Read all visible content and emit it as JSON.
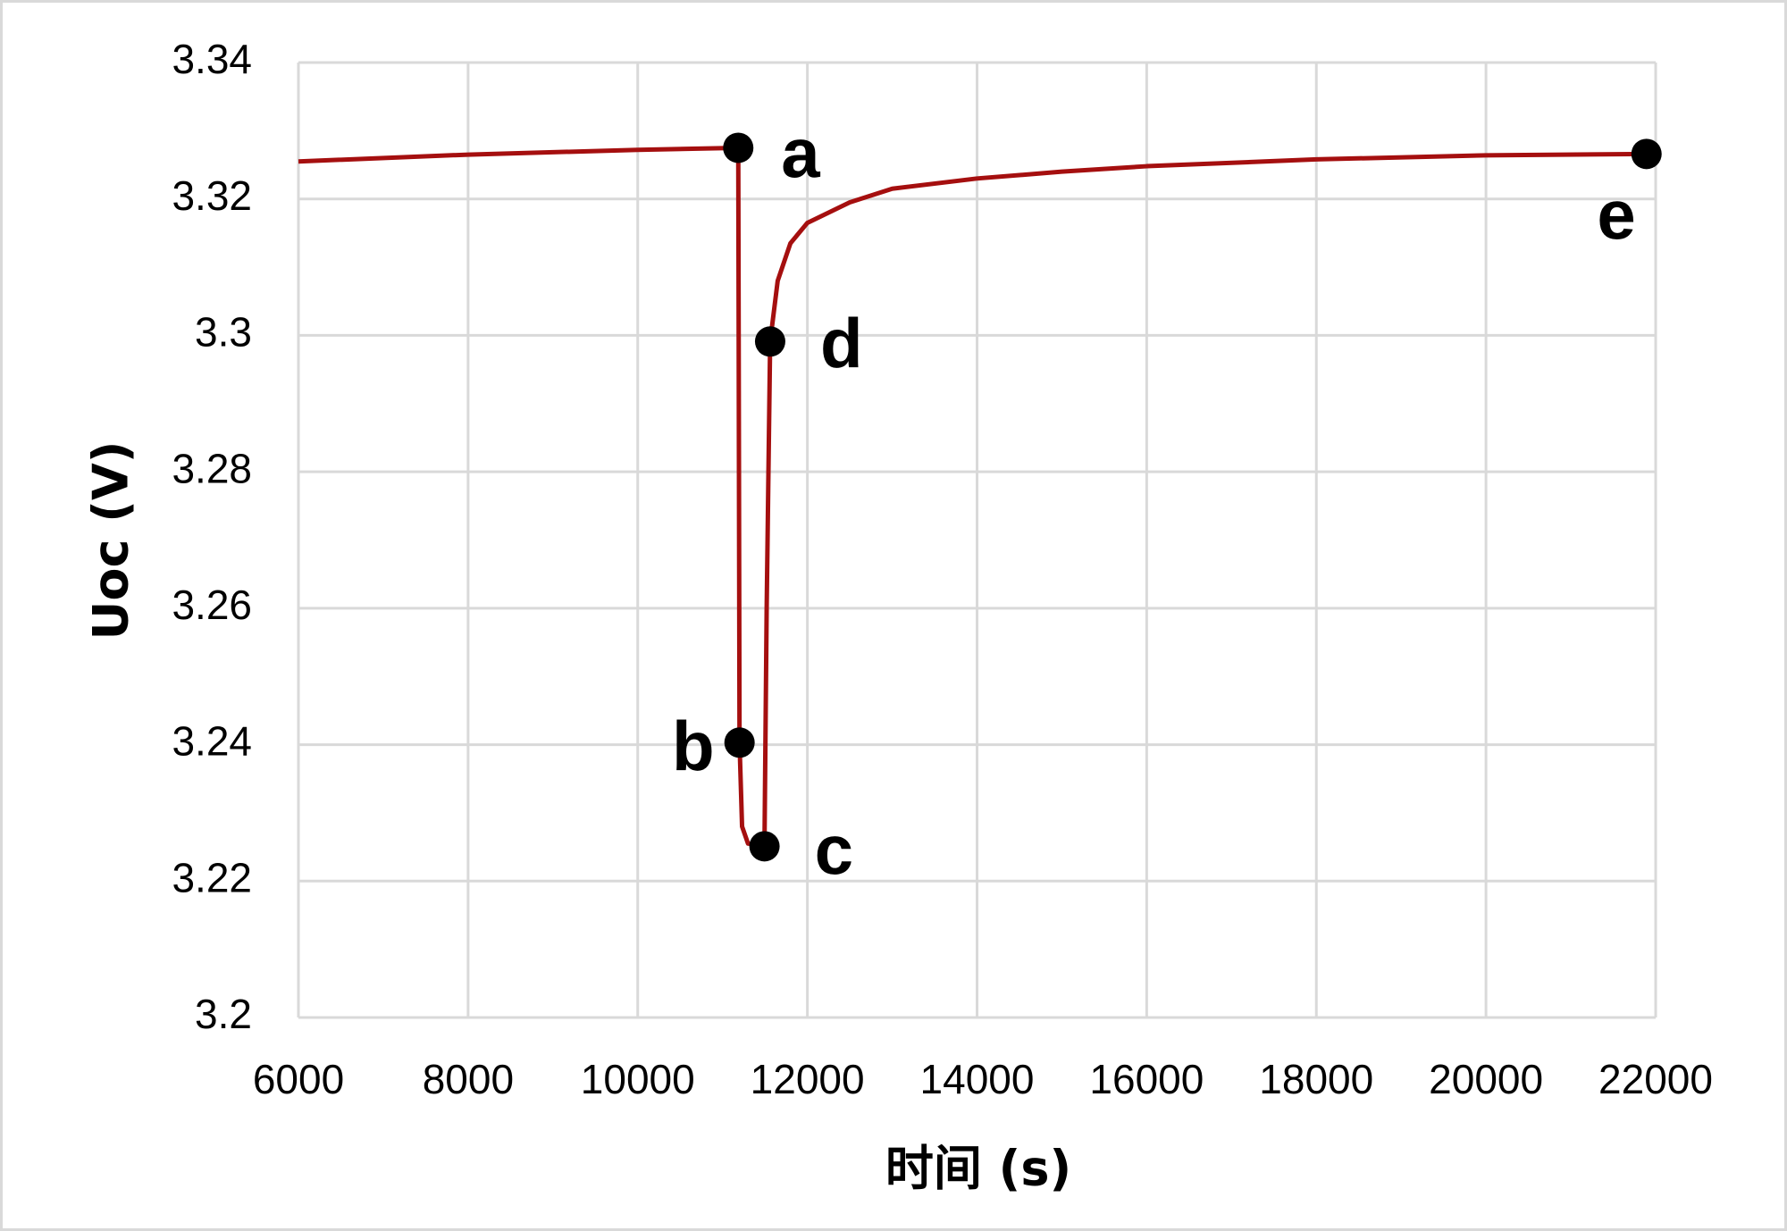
{
  "chart_data": {
    "type": "line",
    "ylabel": "Uoc (V)",
    "xlabel": "时间 (s)",
    "xlim": [
      6000,
      22000
    ],
    "ylim": [
      3.2,
      3.34
    ],
    "xticks": [
      6000,
      8000,
      10000,
      12000,
      14000,
      16000,
      18000,
      20000,
      22000
    ],
    "yticks": [
      3.2,
      3.22,
      3.24,
      3.26,
      3.28,
      3.3,
      3.32,
      3.34
    ],
    "grid": true,
    "series": [
      {
        "color": "#a50f0f",
        "x": [
          6000,
          8000,
          10000,
          11185,
          11190,
          11200,
          11230,
          11300,
          11480,
          11494,
          11520,
          11561,
          11650,
          11800,
          12000,
          12500,
          13000,
          14000,
          15000,
          16000,
          18000,
          20000,
          21892
        ],
        "values": [
          3.3255,
          3.3265,
          3.3272,
          3.3275,
          3.3,
          3.2403,
          3.228,
          3.2255,
          3.2252,
          3.2251,
          3.26,
          3.2991,
          3.308,
          3.3135,
          3.3165,
          3.3195,
          3.3215,
          3.323,
          3.324,
          3.3248,
          3.3258,
          3.3264,
          3.3266
        ]
      }
    ],
    "points": {
      "color": "#000000",
      "labels": [
        "a",
        "b",
        "c",
        "d",
        "e"
      ],
      "x": [
        11185,
        11200,
        11494,
        11561,
        21892
      ],
      "values": [
        3.3275,
        3.2403,
        3.2251,
        3.2991,
        3.3266
      ]
    }
  }
}
